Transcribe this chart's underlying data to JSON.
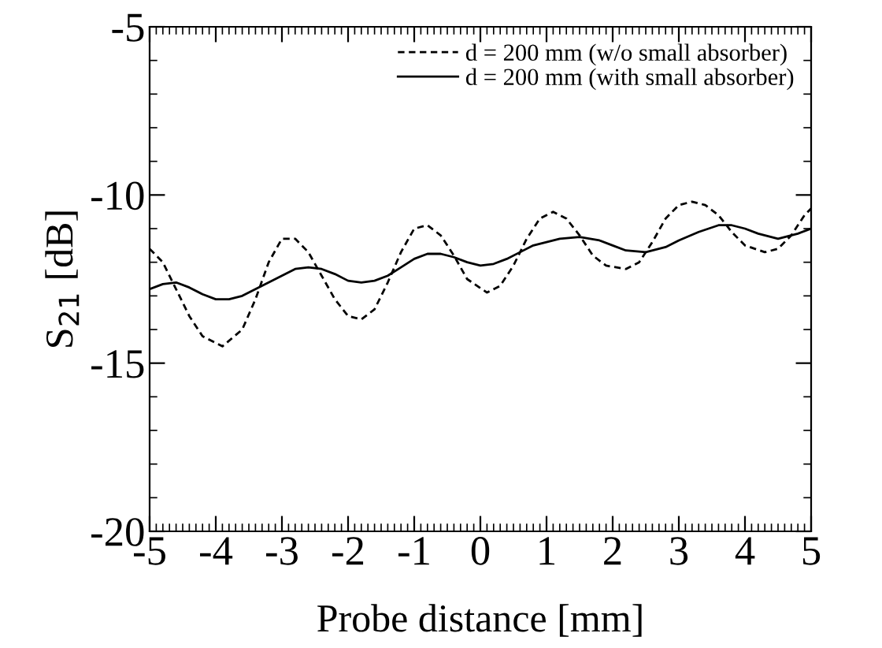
{
  "chart_data": {
    "type": "line",
    "xlabel": "Probe distance [mm]",
    "ylabel": "S$_{21}$ [dB]",
    "xlim": [
      -5,
      5
    ],
    "ylim": [
      -20,
      -5
    ],
    "xticks": [
      -5,
      -4,
      -3,
      -2,
      -1,
      0,
      1,
      2,
      3,
      4,
      5
    ],
    "yticks": [
      -20,
      -15,
      -10,
      -5
    ],
    "grid": false,
    "legend": "top right",
    "series": [
      {
        "name": "d = 200 mm (w/o small absorber)",
        "color": "#000000",
        "line_style": "dashed",
        "x": [
          -5,
          -4.8,
          -4.6,
          -4.4,
          -4.2,
          -3.9,
          -3.6,
          -3.4,
          -3.2,
          -3.0,
          -2.8,
          -2.6,
          -2.4,
          -2.2,
          -2.0,
          -1.8,
          -1.6,
          -1.4,
          -1.2,
          -1.0,
          -0.8,
          -0.6,
          -0.4,
          -0.2,
          0.1,
          0.3,
          0.5,
          0.7,
          0.9,
          1.1,
          1.3,
          1.5,
          1.7,
          1.9,
          2.2,
          2.4,
          2.6,
          2.8,
          3.0,
          3.2,
          3.4,
          3.6,
          3.8,
          4.0,
          4.3,
          4.5,
          4.7,
          4.9,
          5.0
        ],
        "values": [
          -11.6,
          -12.0,
          -12.8,
          -13.6,
          -14.2,
          -14.5,
          -14.0,
          -13.1,
          -12.0,
          -11.3,
          -11.3,
          -11.7,
          -12.4,
          -13.1,
          -13.6,
          -13.7,
          -13.4,
          -12.6,
          -11.7,
          -11.0,
          -10.9,
          -11.2,
          -11.8,
          -12.5,
          -12.9,
          -12.7,
          -12.1,
          -11.3,
          -10.7,
          -10.5,
          -10.7,
          -11.2,
          -11.8,
          -12.1,
          -12.2,
          -12.0,
          -11.4,
          -10.7,
          -10.3,
          -10.2,
          -10.3,
          -10.6,
          -11.1,
          -11.5,
          -11.7,
          -11.6,
          -11.2,
          -10.6,
          -10.4
        ]
      },
      {
        "name": "d = 200 mm (with small absorber)",
        "color": "#000000",
        "line_style": "solid",
        "x": [
          -5,
          -4.8,
          -4.6,
          -4.4,
          -4.2,
          -4.0,
          -3.8,
          -3.6,
          -3.3,
          -3.0,
          -2.8,
          -2.6,
          -2.4,
          -2.2,
          -2.0,
          -1.8,
          -1.6,
          -1.4,
          -1.2,
          -1.0,
          -0.8,
          -0.6,
          -0.4,
          -0.2,
          0.0,
          0.2,
          0.4,
          0.6,
          0.8,
          1.0,
          1.2,
          1.5,
          1.8,
          2.0,
          2.2,
          2.5,
          2.8,
          3.0,
          3.3,
          3.6,
          3.8,
          4.0,
          4.2,
          4.5,
          4.8,
          5.0
        ],
        "values": [
          -12.8,
          -12.65,
          -12.6,
          -12.75,
          -12.95,
          -13.1,
          -13.1,
          -13.0,
          -12.7,
          -12.4,
          -12.2,
          -12.15,
          -12.2,
          -12.35,
          -12.55,
          -12.6,
          -12.55,
          -12.4,
          -12.15,
          -11.9,
          -11.75,
          -11.75,
          -11.85,
          -12.0,
          -12.1,
          -12.05,
          -11.9,
          -11.7,
          -11.5,
          -11.4,
          -11.3,
          -11.25,
          -11.35,
          -11.5,
          -11.65,
          -11.7,
          -11.55,
          -11.35,
          -11.1,
          -10.9,
          -10.9,
          -11.0,
          -11.15,
          -11.3,
          -11.15,
          -11.0
        ]
      }
    ]
  }
}
